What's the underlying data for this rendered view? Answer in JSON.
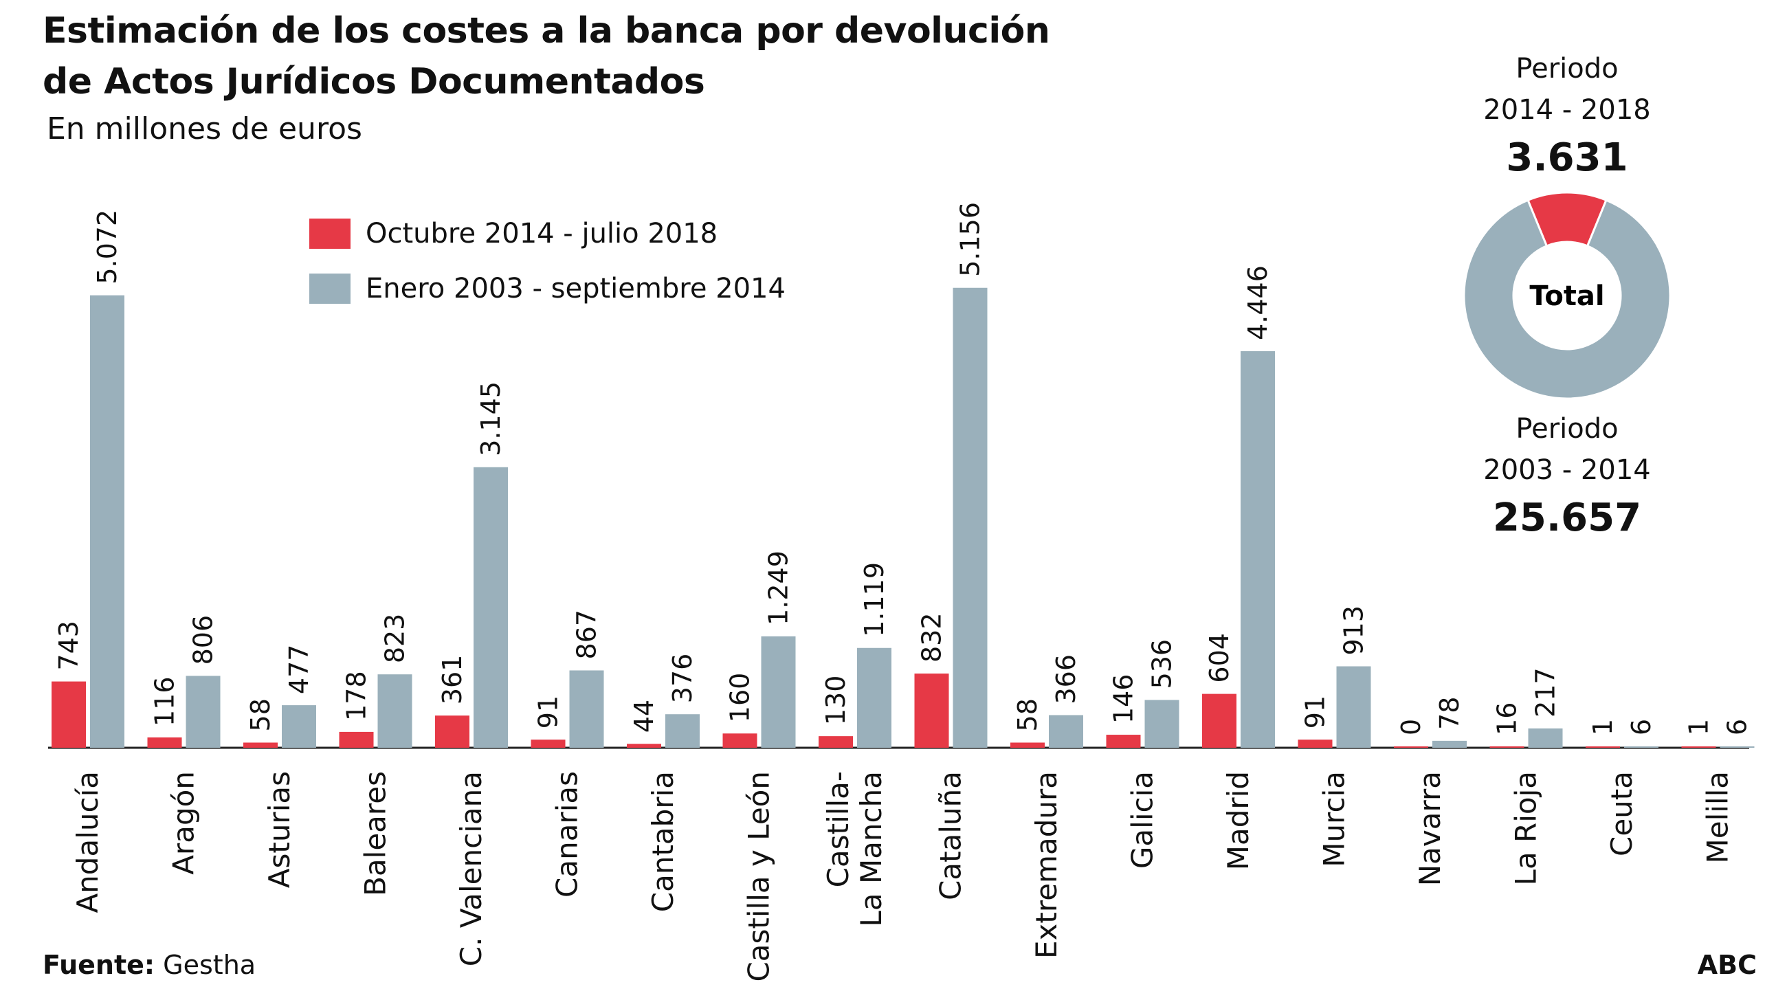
{
  "title_line1": "Estimación de los costes a la banca por devolución",
  "title_line2": "de Actos Jurídicos Documentados",
  "subtitle": "En millones de euros",
  "legend": [
    {
      "label": "Octubre 2014 - julio 2018",
      "color": "#e63946"
    },
    {
      "label": "Enero 2003 - septiembre 2014",
      "color": "#9ab0bb"
    }
  ],
  "donut": {
    "top_period_line1": "Periodo",
    "top_period_line2": "2014 - 2018",
    "top_value": "3.631",
    "center_label": "Total",
    "bottom_period_line1": "Periodo",
    "bottom_period_line2": "2003 - 2014",
    "bottom_value": "25.657"
  },
  "source_label": "Fuente:",
  "source_value": "Gestha",
  "brand": "ABC",
  "chart_data": {
    "type": "bar",
    "categories": [
      "Andalucía",
      "Aragón",
      "Asturias",
      "Baleares",
      "C. Valenciana",
      "Canarias",
      "Cantabria",
      "Castilla y León",
      "Castilla- La Mancha",
      "Cataluña",
      "Extremadura",
      "Galicia",
      "Madrid",
      "Murcia",
      "Navarra",
      "La Rioja",
      "Ceuta",
      "Melilla"
    ],
    "category_lines": [
      [
        "Andalucía"
      ],
      [
        "Aragón"
      ],
      [
        "Asturias"
      ],
      [
        "Baleares"
      ],
      [
        "C. Valenciana"
      ],
      [
        "Canarias"
      ],
      [
        "Cantabria"
      ],
      [
        "Castilla y León"
      ],
      [
        "Castilla-",
        "La Mancha"
      ],
      [
        "Cataluña"
      ],
      [
        "Extremadura"
      ],
      [
        "Galicia"
      ],
      [
        "Madrid"
      ],
      [
        "Murcia"
      ],
      [
        "Navarra"
      ],
      [
        "La Rioja"
      ],
      [
        "Ceuta"
      ],
      [
        "Melilla"
      ]
    ],
    "series": [
      {
        "name": "Octubre 2014 - julio 2018",
        "color": "#e63946",
        "values": [
          743,
          116,
          58,
          178,
          361,
          91,
          44,
          160,
          130,
          832,
          58,
          146,
          604,
          91,
          0,
          16,
          1,
          1
        ],
        "labels": [
          "743",
          "116",
          "58",
          "178",
          "361",
          "91",
          "44",
          "160",
          "130",
          "832",
          "58",
          "146",
          "604",
          "91",
          "0",
          "16",
          "1",
          "1"
        ]
      },
      {
        "name": "Enero 2003 - septiembre 2014",
        "color": "#9ab0bb",
        "values": [
          5072,
          806,
          477,
          823,
          3145,
          867,
          376,
          1249,
          1119,
          5156,
          366,
          536,
          4446,
          913,
          78,
          217,
          6,
          6
        ],
        "labels": [
          "5.072",
          "806",
          "477",
          "823",
          "3.145",
          "867",
          "376",
          "1.249",
          "1.119",
          "5.156",
          "366",
          "536",
          "4.446",
          "913",
          "78",
          "217",
          "6",
          "6"
        ]
      }
    ],
    "donut_slices": [
      {
        "name": "Periodo 2014 - 2018",
        "value": 3631,
        "color": "#e63946"
      },
      {
        "name": "Periodo 2003 - 2014",
        "value": 25657,
        "color": "#9ab0bb"
      }
    ],
    "grid": false,
    "legend_position": "top-left"
  }
}
